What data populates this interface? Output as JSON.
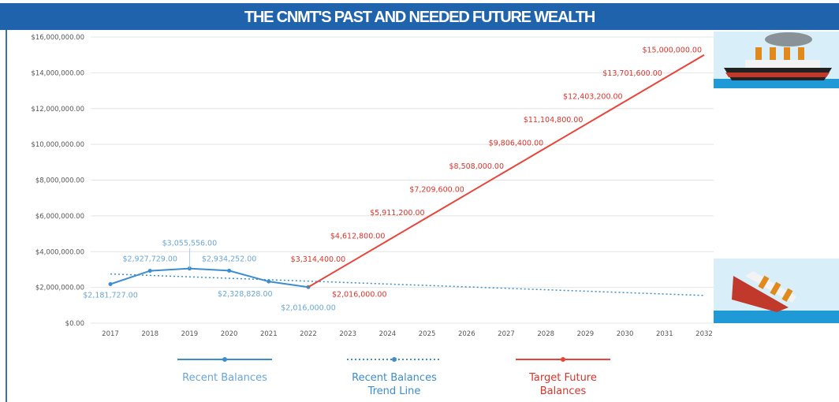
{
  "chart_data": {
    "type": "line",
    "title": "THE CNMT'S PAST AND NEEDED FUTURE WEALTH",
    "categories": [
      "2017",
      "2018",
      "2019",
      "2020",
      "2021",
      "2022",
      "2023",
      "2024",
      "2025",
      "2026",
      "2027",
      "2028",
      "2029",
      "2030",
      "2031",
      "2032"
    ],
    "ylim": [
      0,
      16000000
    ],
    "yticks": [
      {
        "value": 0,
        "label": "$0.00"
      },
      {
        "value": 2000000,
        "label": "$2,000,000.00"
      },
      {
        "value": 4000000,
        "label": "$4,000,000.00"
      },
      {
        "value": 6000000,
        "label": "$6,000,000.00"
      },
      {
        "value": 8000000,
        "label": "$8,000,000.00"
      },
      {
        "value": 10000000,
        "label": "$10,000,000.00"
      },
      {
        "value": 12000000,
        "label": "$12,000,000.00"
      },
      {
        "value": 14000000,
        "label": "$14,000,000.00"
      },
      {
        "value": 16000000,
        "label": "$16,000,000.00"
      }
    ],
    "grid": true,
    "legend": "bottom",
    "series": [
      {
        "name": "Recent Balances",
        "color": "#3b8dd0",
        "label_color": "#6aa6d6",
        "line_style": "solid",
        "markers": true,
        "values": [
          2181727,
          2927729,
          3055556,
          2934252,
          2328828,
          2016000,
          null,
          null,
          null,
          null,
          null,
          null,
          null,
          null,
          null,
          null
        ],
        "value_labels": [
          "$2,181,727.00",
          "$2,927,729.00",
          "$3,055,556.00",
          "$2,934,252.00",
          "$2,328,828.00",
          "$2,016,000.00",
          null,
          null,
          null,
          null,
          null,
          null,
          null,
          null,
          null,
          null
        ]
      },
      {
        "name": "Recent Balances Trend Line",
        "color": "#3b8dd0",
        "line_style": "dotted",
        "markers": false,
        "values": [
          2750000,
          2670000,
          2590000,
          2510000,
          2430000,
          2350000,
          2270000,
          2190000,
          2110000,
          2030000,
          1950000,
          1870000,
          1790000,
          1710000,
          1630000,
          1550000
        ]
      },
      {
        "name": "Target Future Balances",
        "color": "#e8443a",
        "label_color": "#d9342b",
        "line_style": "solid",
        "markers": false,
        "values": [
          null,
          null,
          null,
          null,
          null,
          2016000,
          3314400,
          4612800,
          5911200,
          7209600,
          8508000,
          9806400,
          11104800,
          12403200,
          13701600,
          15000000
        ],
        "value_labels": [
          null,
          null,
          null,
          null,
          null,
          "$2,016,000.00",
          "$3,314,400.00",
          "$4,612,800.00",
          "$5,911,200.00",
          "$7,209,600.00",
          "$8,508,000.00",
          "$9,806,400.00",
          "$11,104,800.00",
          "$12,403,200.00",
          "$13,701,600.00",
          "$15,000,000.00"
        ]
      }
    ]
  }
}
